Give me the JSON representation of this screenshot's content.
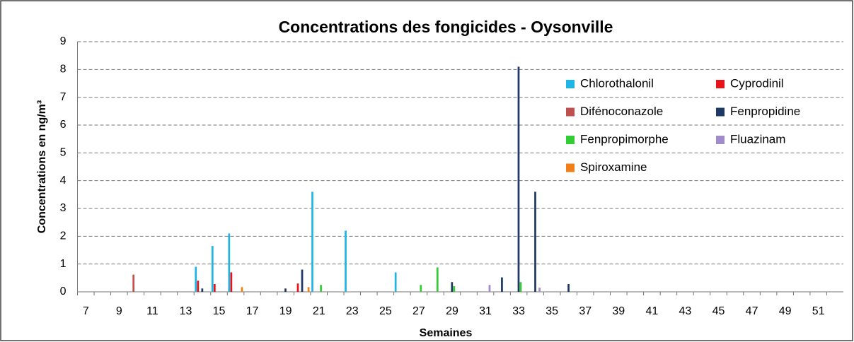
{
  "chart_data": {
    "type": "bar",
    "title": "Concentrations des fongicides -  Oysonville",
    "x_label": "Semaines",
    "y_label": "Concentrations en ng/m³",
    "categories": [
      "7",
      null,
      "9",
      null,
      "11",
      null,
      "13",
      null,
      "15",
      null,
      "17",
      null,
      "19",
      null,
      "21",
      null,
      "23",
      null,
      "25",
      null,
      "27",
      null,
      "29",
      null,
      "31",
      null,
      "33",
      null,
      "35",
      null,
      "37",
      null,
      "39",
      null,
      "41",
      null,
      "43",
      null,
      "45",
      null,
      "47",
      null,
      "49",
      null,
      "51",
      null
    ],
    "series": [
      {
        "name": "Chlorothalonil",
        "color": "#1fb4e6",
        "values": [
          null,
          null,
          null,
          null,
          null,
          null,
          null,
          0.9,
          1.65,
          2.1,
          null,
          null,
          null,
          null,
          3.6,
          null,
          2.2,
          null,
          null,
          0.7,
          null,
          null,
          null,
          null,
          null,
          null,
          null,
          null,
          null,
          null,
          null,
          null,
          null,
          null,
          null,
          null,
          null,
          null,
          null,
          null,
          null,
          null,
          null,
          null,
          null,
          null
        ]
      },
      {
        "name": "Cyprodinil",
        "color": "#e8141c",
        "values": [
          null,
          null,
          null,
          null,
          null,
          null,
          null,
          0.4,
          0.28,
          0.7,
          null,
          null,
          null,
          0.3,
          null,
          null,
          null,
          null,
          null,
          null,
          null,
          null,
          null,
          null,
          null,
          null,
          null,
          null,
          null,
          null,
          null,
          null,
          null,
          null,
          null,
          null,
          null,
          null,
          null,
          null,
          null,
          null,
          null,
          null,
          null,
          null
        ]
      },
      {
        "name": "Difénoconazole",
        "color": "#c0504d",
        "values": [
          null,
          null,
          null,
          0.62,
          null,
          null,
          null,
          null,
          null,
          null,
          null,
          null,
          null,
          null,
          null,
          null,
          null,
          null,
          null,
          null,
          null,
          null,
          null,
          null,
          null,
          null,
          null,
          null,
          null,
          null,
          null,
          null,
          null,
          null,
          null,
          null,
          null,
          null,
          null,
          null,
          null,
          null,
          null,
          null,
          null,
          null
        ]
      },
      {
        "name": "Fenpropidine",
        "color": "#1f3864",
        "values": [
          null,
          null,
          null,
          null,
          null,
          null,
          null,
          0.12,
          null,
          null,
          null,
          null,
          0.12,
          0.8,
          null,
          null,
          null,
          null,
          null,
          null,
          null,
          null,
          0.35,
          null,
          null,
          0.52,
          8.1,
          3.6,
          null,
          0.28,
          null,
          null,
          null,
          null,
          null,
          null,
          null,
          null,
          null,
          null,
          null,
          null,
          null,
          null,
          null,
          null
        ]
      },
      {
        "name": "Fenpropimorphe",
        "color": "#33cc33",
        "values": [
          null,
          null,
          null,
          null,
          null,
          null,
          null,
          null,
          null,
          null,
          null,
          null,
          null,
          null,
          0.25,
          null,
          null,
          null,
          null,
          null,
          0.25,
          0.88,
          0.2,
          null,
          null,
          null,
          0.35,
          null,
          null,
          null,
          null,
          null,
          null,
          null,
          null,
          null,
          null,
          null,
          null,
          null,
          null,
          null,
          null,
          null,
          null,
          null
        ]
      },
      {
        "name": "Fluazinam",
        "color": "#a08cc8",
        "values": [
          null,
          null,
          null,
          null,
          null,
          null,
          null,
          null,
          null,
          null,
          null,
          null,
          null,
          null,
          null,
          null,
          null,
          null,
          null,
          null,
          null,
          null,
          null,
          null,
          0.25,
          null,
          null,
          0.15,
          null,
          null,
          null,
          null,
          null,
          null,
          null,
          null,
          null,
          null,
          null,
          null,
          null,
          null,
          null,
          null,
          null,
          null
        ]
      },
      {
        "name": "Spiroxamine",
        "color": "#f07f1a",
        "values": [
          null,
          null,
          null,
          null,
          null,
          null,
          null,
          null,
          null,
          0.17,
          null,
          null,
          null,
          0.17,
          null,
          null,
          null,
          null,
          null,
          null,
          null,
          null,
          null,
          null,
          null,
          null,
          null,
          null,
          null,
          null,
          null,
          null,
          null,
          null,
          null,
          null,
          null,
          null,
          null,
          null,
          null,
          null,
          null,
          null,
          null,
          null
        ]
      }
    ],
    "ylim": [
      0,
      9
    ],
    "yticks": [
      0,
      1,
      2,
      3,
      4,
      5,
      6,
      7,
      8,
      9
    ],
    "grid": true
  }
}
